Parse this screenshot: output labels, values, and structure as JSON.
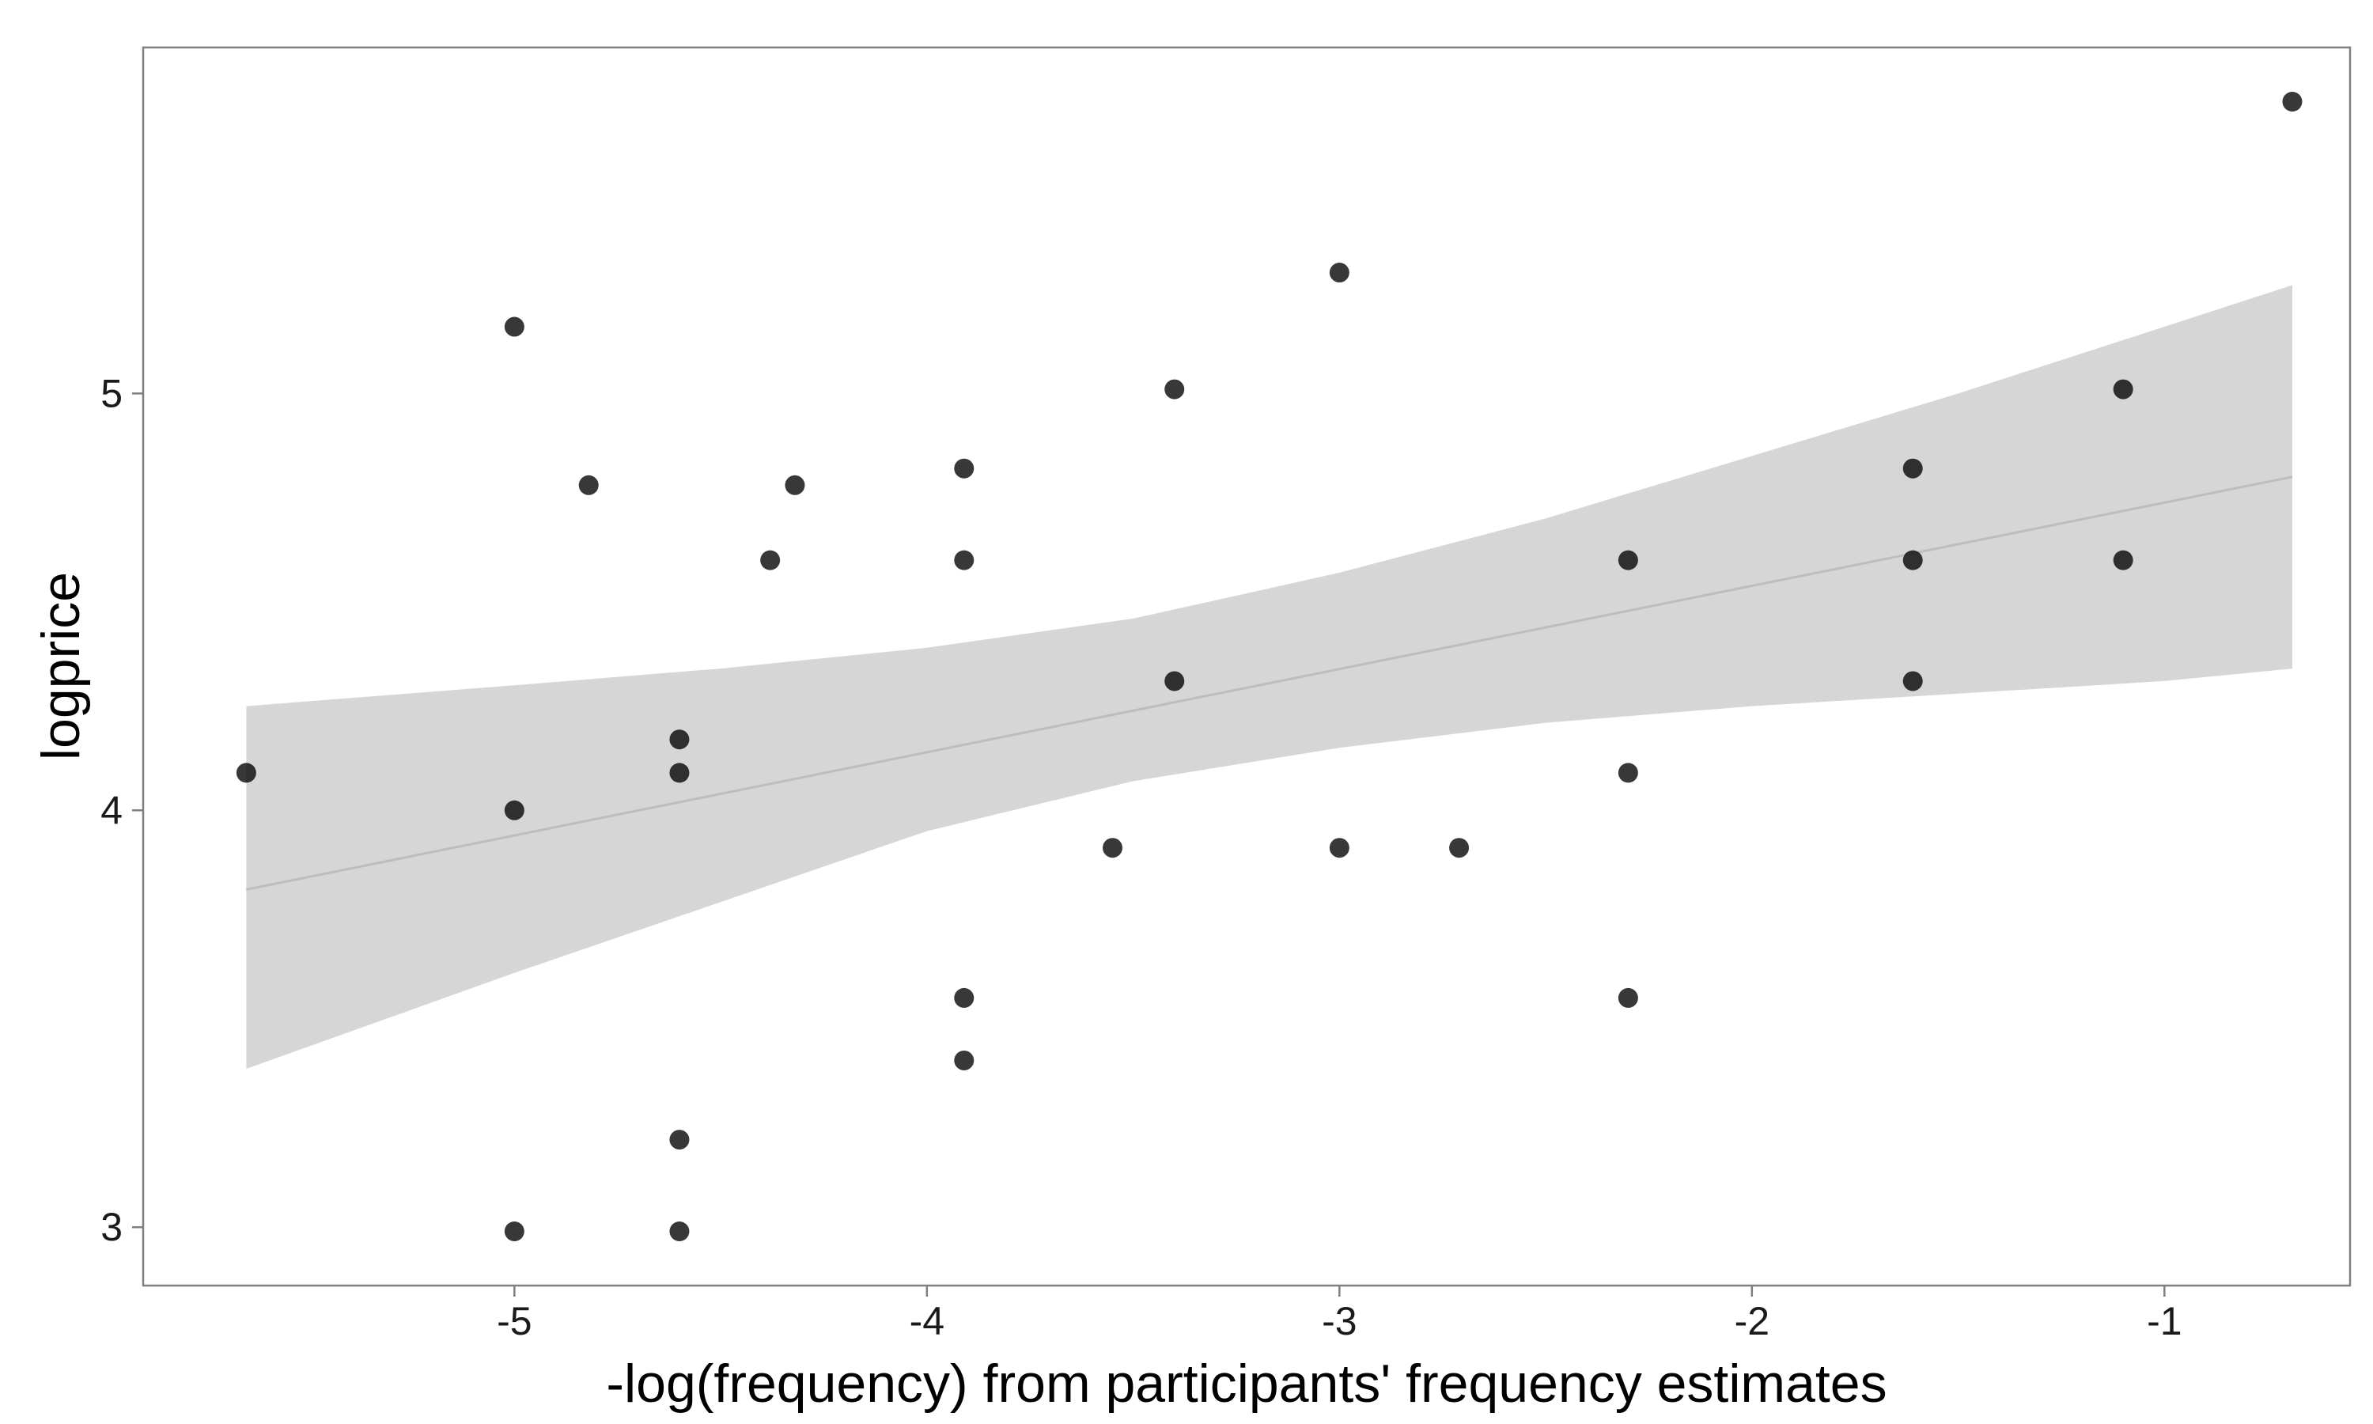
{
  "chart_data": {
    "type": "scatter",
    "xlabel": "-log(frequency) from participants' frequency estimates",
    "ylabel": "logprice",
    "xlim": [
      -5.9,
      -0.55
    ],
    "ylim": [
      2.86,
      5.83
    ],
    "x_ticks": [
      -5,
      -4,
      -3,
      -2,
      -1
    ],
    "y_ticks": [
      3,
      4,
      5
    ],
    "grid": false,
    "colors": {
      "point": "#000000",
      "band": "#d6d6d6",
      "line": "#bdbdbd",
      "frame": "#7f7f7f"
    },
    "points": [
      {
        "x": -5.65,
        "y": 4.09
      },
      {
        "x": -5.0,
        "y": 5.16
      },
      {
        "x": -5.0,
        "y": 4.0
      },
      {
        "x": -5.0,
        "y": 2.99
      },
      {
        "x": -4.82,
        "y": 4.78
      },
      {
        "x": -4.6,
        "y": 4.17
      },
      {
        "x": -4.6,
        "y": 4.09
      },
      {
        "x": -4.6,
        "y": 3.21
      },
      {
        "x": -4.6,
        "y": 2.99
      },
      {
        "x": -4.38,
        "y": 4.6
      },
      {
        "x": -4.32,
        "y": 4.78
      },
      {
        "x": -3.91,
        "y": 4.82
      },
      {
        "x": -3.91,
        "y": 4.6
      },
      {
        "x": -3.91,
        "y": 3.55
      },
      {
        "x": -3.91,
        "y": 3.4
      },
      {
        "x": -3.55,
        "y": 3.91
      },
      {
        "x": -3.4,
        "y": 5.01
      },
      {
        "x": -3.4,
        "y": 4.31
      },
      {
        "x": -3.0,
        "y": 5.29
      },
      {
        "x": -3.0,
        "y": 3.91
      },
      {
        "x": -2.71,
        "y": 3.91
      },
      {
        "x": -2.3,
        "y": 4.6
      },
      {
        "x": -2.3,
        "y": 4.09
      },
      {
        "x": -2.3,
        "y": 3.55
      },
      {
        "x": -1.61,
        "y": 4.82
      },
      {
        "x": -1.61,
        "y": 4.6
      },
      {
        "x": -1.61,
        "y": 4.31
      },
      {
        "x": -1.1,
        "y": 5.01
      },
      {
        "x": -1.1,
        "y": 4.6
      },
      {
        "x": -0.69,
        "y": 5.7
      }
    ],
    "fit_line": {
      "x": [
        -5.65,
        -0.69
      ],
      "y": [
        3.81,
        4.8
      ]
    },
    "confidence_band": {
      "x": [
        -5.65,
        -5.0,
        -4.5,
        -4.0,
        -3.5,
        -3.0,
        -2.5,
        -2.0,
        -1.5,
        -1.0,
        -0.69
      ],
      "upper": [
        4.25,
        4.3,
        4.34,
        4.39,
        4.46,
        4.57,
        4.7,
        4.85,
        5.0,
        5.16,
        5.26
      ],
      "lower": [
        3.38,
        3.61,
        3.78,
        3.95,
        4.07,
        4.15,
        4.21,
        4.25,
        4.28,
        4.31,
        4.34
      ]
    }
  }
}
